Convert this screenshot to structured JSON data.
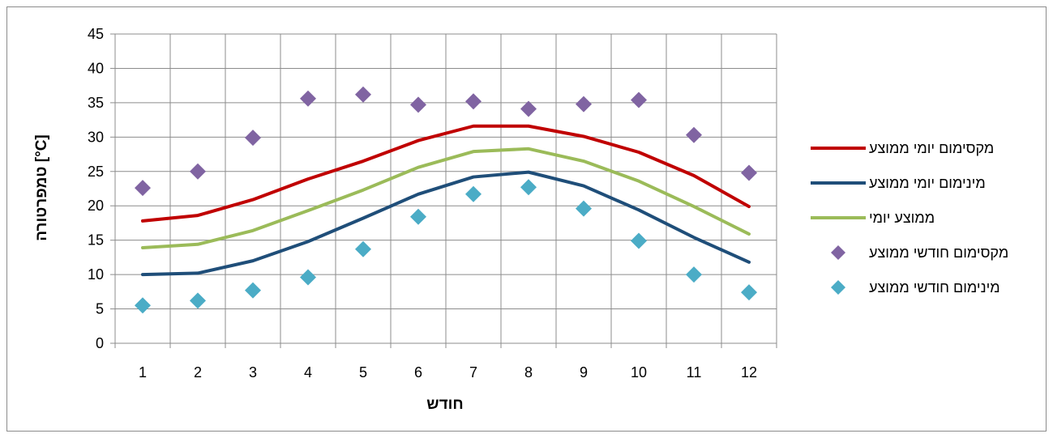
{
  "chart_data": {
    "type": "line",
    "xlabel": "חודש",
    "ylabel": "טמפרטורה [°C]",
    "ylim": [
      0,
      45
    ],
    "yticks": [
      0,
      5,
      10,
      15,
      20,
      25,
      30,
      35,
      40,
      45
    ],
    "categories": [
      "1",
      "2",
      "3",
      "4",
      "5",
      "6",
      "7",
      "8",
      "9",
      "10",
      "11",
      "12"
    ],
    "grid": true,
    "legend_position": "right",
    "series": [
      {
        "name": "מקסימום יומי ממוצע",
        "kind": "line",
        "color": "#c00000",
        "values": [
          17.8,
          18.6,
          20.9,
          23.9,
          26.5,
          29.5,
          31.6,
          31.6,
          30.1,
          27.8,
          24.4,
          19.9
        ]
      },
      {
        "name": "מינימום יומי ממוצע",
        "kind": "line",
        "color": "#1f4e79",
        "values": [
          10.0,
          10.2,
          12.0,
          14.8,
          18.2,
          21.7,
          24.2,
          24.9,
          22.9,
          19.4,
          15.4,
          11.8
        ]
      },
      {
        "name": "ממוצע יומי",
        "kind": "line",
        "color": "#9bbb59",
        "values": [
          13.9,
          14.4,
          16.4,
          19.3,
          22.3,
          25.6,
          27.9,
          28.3,
          26.5,
          23.6,
          19.9,
          15.9
        ]
      },
      {
        "name": "מקסימום חודשי ממוצע",
        "kind": "marker",
        "color": "#8064a2",
        "values": [
          22.6,
          25.0,
          29.9,
          35.6,
          36.2,
          34.7,
          35.2,
          34.1,
          34.8,
          35.4,
          30.3,
          24.8
        ]
      },
      {
        "name": "מינימום חודשי ממוצע",
        "kind": "marker",
        "color": "#4bacc6",
        "values": [
          5.5,
          6.2,
          7.7,
          9.6,
          13.7,
          18.4,
          21.7,
          22.7,
          19.6,
          14.9,
          10.0,
          7.4
        ]
      }
    ]
  }
}
